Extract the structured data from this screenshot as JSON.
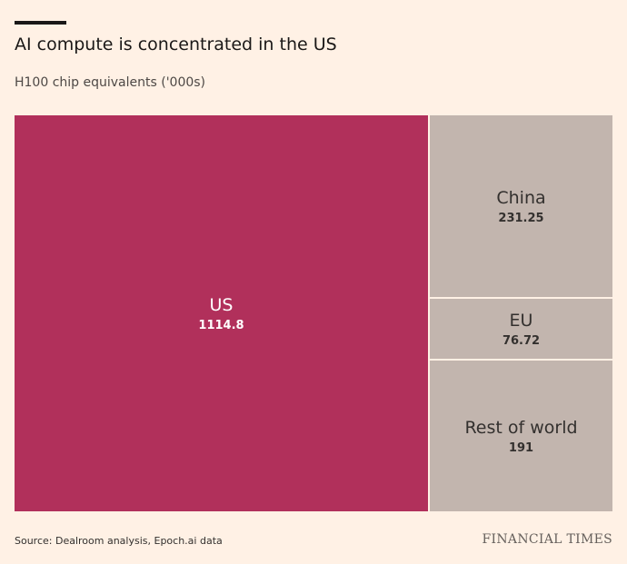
{
  "header": {
    "title": "AI compute is concentrated in the US",
    "subtitle": "H100 chip equivalents ('000s)"
  },
  "chart_data": {
    "type": "treemap",
    "title": "AI compute is concentrated in the US",
    "subtitle": "H100 chip equivalents ('000s)",
    "items": [
      {
        "name": "US",
        "value": 1114.8,
        "value_label": "1114.8",
        "color": "#b1305b",
        "text_color": "#ffffff"
      },
      {
        "name": "China",
        "value": 231.25,
        "value_label": "231.25",
        "color": "#c2b5ae",
        "text_color": "#33302e"
      },
      {
        "name": "EU",
        "value": 76.72,
        "value_label": "76.72",
        "color": "#c2b5ae",
        "text_color": "#33302e"
      },
      {
        "name": "Rest of world",
        "value": 191,
        "value_label": "191",
        "color": "#c2b5ae",
        "text_color": "#33302e"
      }
    ]
  },
  "footer": {
    "source": "Source: Dealroom analysis, Epoch.ai data",
    "brand": "FINANCIAL TIMES"
  },
  "colors": {
    "background": "#fff1e5",
    "accent": "#b1305b",
    "other": "#c2b5ae"
  }
}
